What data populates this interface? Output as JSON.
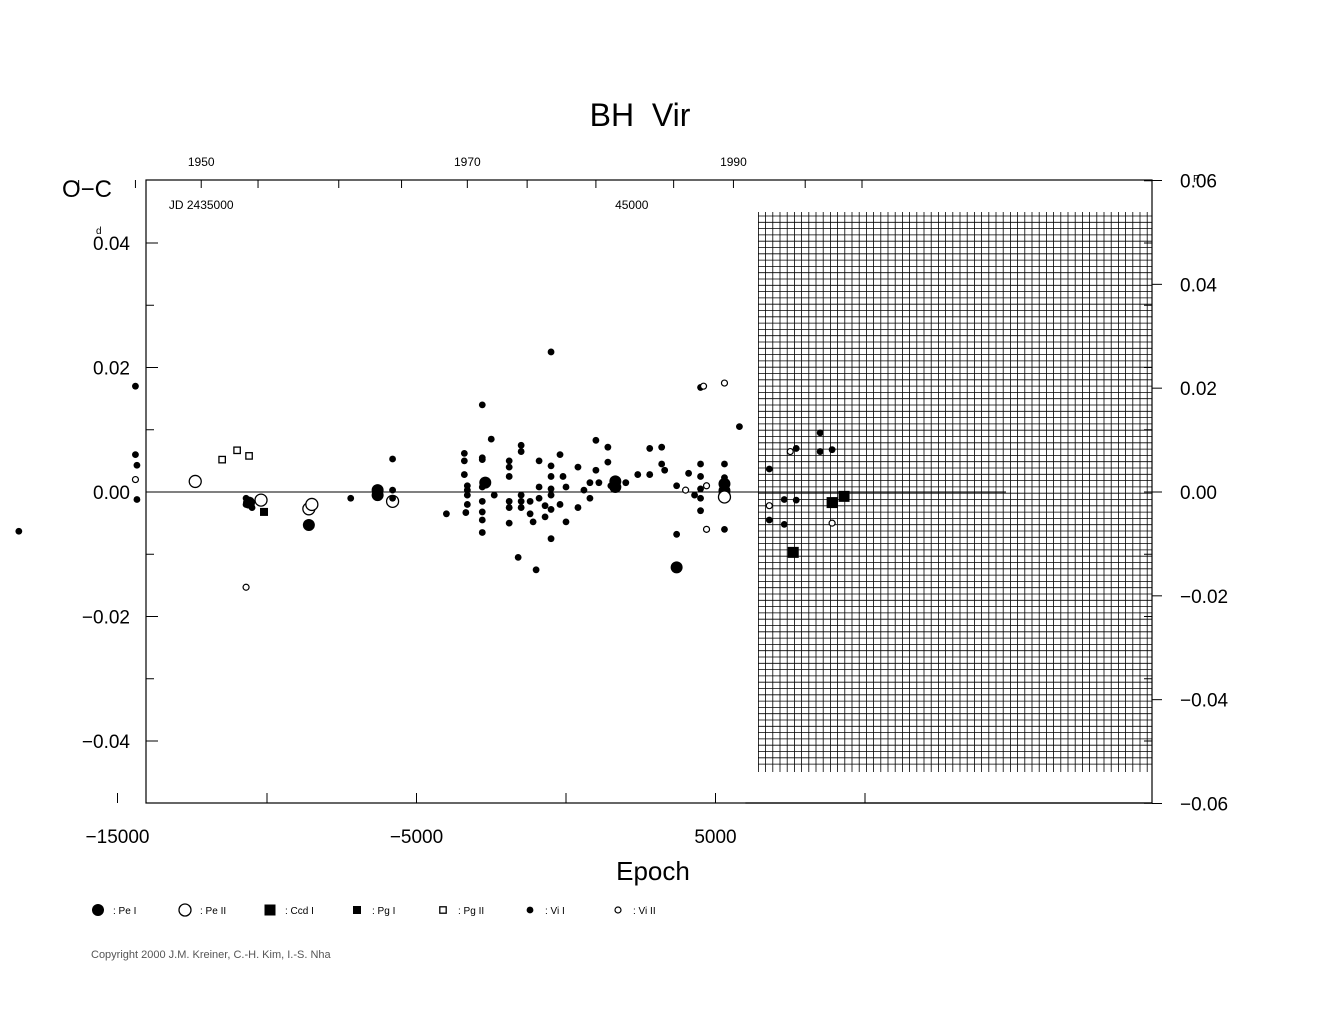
{
  "chart_data": {
    "type": "scatter",
    "title": "BH  Vir",
    "xlabel": "Epoch",
    "ylabel_left": "O−C",
    "ylabel_left_unit": "d",
    "ylabel_right_unit": "P",
    "xlim": [
      -19000,
      10650
    ],
    "ylim": [
      -0.05,
      0.05
    ],
    "ylim_right": [
      -0.06,
      0.06
    ],
    "x_ticks": [
      -15000,
      -5000,
      5000
    ],
    "x_tick_labels": [
      "−15000",
      "−5000",
      "5000"
    ],
    "y_ticks": [
      0.04,
      0.02,
      0.0,
      -0.02,
      -0.04
    ],
    "y_tick_labels": [
      "0.04",
      "0.02",
      "0.00",
      "−0.02",
      "−0.04"
    ],
    "y_right_ticks": [
      0.06,
      0.04,
      0.02,
      0.0,
      -0.02,
      -0.04,
      -0.06
    ],
    "y_right_tick_labels": [
      "0.06",
      "0.04",
      "0.02",
      "0.00",
      "−0.02",
      "−0.04",
      "−0.06"
    ],
    "top_year_labels": [
      {
        "year": "1950",
        "epoch": -12200
      },
      {
        "year": "1970",
        "epoch": -3300
      },
      {
        "year": "1990",
        "epoch": 5600
      }
    ],
    "jd_labels": [
      {
        "text": "JD  2435000",
        "epoch": -12200
      },
      {
        "text": "45000",
        "epoch": 2200
      }
    ],
    "hatched_region_start": 6000,
    "legend": [
      {
        "marker": "big-filled-circle",
        "label": ": Pe I"
      },
      {
        "marker": "big-open-circle",
        "label": ": Pe II"
      },
      {
        "marker": "big-filled-square",
        "label": ": Ccd I"
      },
      {
        "marker": "small-filled-square",
        "label": ": Pg I"
      },
      {
        "marker": "small-open-square",
        "label": ": Pg II"
      },
      {
        "marker": "small-filled-circle",
        "label": ": Vi I"
      },
      {
        "marker": "small-open-circle",
        "label": ": Vi II"
      }
    ],
    "series": [
      {
        "name": ": Pe I",
        "marker": "big-filled-circle",
        "points": [
          [
            -10600,
            -0.0017
          ],
          [
            -8600,
            -0.0053
          ],
          [
            -6300,
            0.0003
          ],
          [
            -6300,
            -0.0005
          ],
          [
            -2700,
            0.0015
          ],
          [
            1650,
            0.0017
          ],
          [
            1650,
            0.0008
          ],
          [
            3700,
            -0.0121
          ],
          [
            5300,
            0.0013
          ],
          [
            5300,
            0.0002
          ],
          [
            5300,
            -0.0005
          ]
        ]
      },
      {
        "name": ": Pe II",
        "marker": "big-open-circle",
        "points": [
          [
            -12400,
            0.0017
          ],
          [
            -10200,
            -0.0013
          ],
          [
            -8600,
            -0.0027
          ],
          [
            -8500,
            -0.002
          ],
          [
            -5800,
            -0.0015
          ],
          [
            5300,
            -0.0008
          ]
        ]
      },
      {
        "name": ": Ccd I",
        "marker": "big-filled-square",
        "points": [
          [
            7600,
            -0.0097
          ],
          [
            8900,
            -0.0017
          ],
          [
            9300,
            -0.0007
          ]
        ]
      },
      {
        "name": ": Pg I",
        "marker": "small-filled-square",
        "points": [
          [
            -10100,
            -0.0032
          ]
        ]
      },
      {
        "name": ": Pg II",
        "marker": "small-open-square",
        "points": [
          [
            -11500,
            0.0052
          ],
          [
            -11000,
            0.0067
          ],
          [
            -10600,
            0.0058
          ]
        ]
      },
      {
        "name": ": Vi I",
        "marker": "small-filled-circle",
        "points": [
          [
            -18300,
            -0.0063
          ],
          [
            -14400,
            0.017
          ],
          [
            -14400,
            0.006
          ],
          [
            -14350,
            0.0043
          ],
          [
            -14350,
            -0.0012
          ],
          [
            -10700,
            -0.001
          ],
          [
            -10700,
            -0.002
          ],
          [
            -10500,
            -0.0025
          ],
          [
            -7200,
            -0.001
          ],
          [
            -5800,
            0.0053
          ],
          [
            -5800,
            0.0003
          ],
          [
            -5800,
            -0.001
          ],
          [
            -4000,
            -0.0035
          ],
          [
            -3400,
            0.0062
          ],
          [
            -3400,
            0.005
          ],
          [
            -3400,
            0.0028
          ],
          [
            -3300,
            0.001
          ],
          [
            -3300,
            0.0003
          ],
          [
            -3300,
            -0.0005
          ],
          [
            -3300,
            -0.002
          ],
          [
            -3350,
            -0.0033
          ],
          [
            -2800,
            0.014
          ],
          [
            -2800,
            0.0055
          ],
          [
            -2800,
            0.0052
          ],
          [
            -2800,
            0.0008
          ],
          [
            -2800,
            -0.0015
          ],
          [
            -2800,
            -0.0032
          ],
          [
            -2800,
            -0.0045
          ],
          [
            -2800,
            -0.0065
          ],
          [
            -2500,
            0.0085
          ],
          [
            -2400,
            -0.0005
          ],
          [
            -1900,
            0.005
          ],
          [
            -1900,
            0.004
          ],
          [
            -1900,
            0.0025
          ],
          [
            -1900,
            -0.0015
          ],
          [
            -1900,
            -0.0025
          ],
          [
            -1900,
            -0.005
          ],
          [
            -1600,
            -0.0105
          ],
          [
            -1500,
            0.0075
          ],
          [
            -1500,
            0.0065
          ],
          [
            -1500,
            -0.0005
          ],
          [
            -1500,
            -0.0015
          ],
          [
            -1500,
            -0.0025
          ],
          [
            -1200,
            -0.0015
          ],
          [
            -1200,
            -0.0035
          ],
          [
            -1100,
            -0.0048
          ],
          [
            -1000,
            -0.0125
          ],
          [
            -900,
            0.005
          ],
          [
            -900,
            0.0008
          ],
          [
            -900,
            -0.001
          ],
          [
            -700,
            -0.0022
          ],
          [
            -700,
            -0.004
          ],
          [
            -500,
            0.0225
          ],
          [
            -500,
            0.0042
          ],
          [
            -500,
            0.0025
          ],
          [
            -500,
            0.0005
          ],
          [
            -500,
            -0.0005
          ],
          [
            -500,
            -0.0028
          ],
          [
            -500,
            -0.0075
          ],
          [
            -200,
            0.006
          ],
          [
            -200,
            -0.002
          ],
          [
            -100,
            0.0025
          ],
          [
            0,
            0.0008
          ],
          [
            0,
            -0.0048
          ],
          [
            400,
            0.004
          ],
          [
            400,
            -0.0025
          ],
          [
            600,
            0.0003
          ],
          [
            800,
            0.0015
          ],
          [
            800,
            -0.001
          ],
          [
            1000,
            0.0083
          ],
          [
            1000,
            0.0035
          ],
          [
            1100,
            0.0015
          ],
          [
            1400,
            0.0072
          ],
          [
            1400,
            0.0048
          ],
          [
            1500,
            0.001
          ],
          [
            2000,
            0.0015
          ],
          [
            2400,
            0.0028
          ],
          [
            2800,
            0.0028
          ],
          [
            2800,
            0.007
          ],
          [
            3200,
            0.0072
          ],
          [
            3200,
            0.0045
          ],
          [
            3300,
            0.0035
          ],
          [
            3700,
            0.001
          ],
          [
            3700,
            -0.0068
          ],
          [
            4100,
            0.003
          ],
          [
            4300,
            -0.0005
          ],
          [
            4500,
            0.0168
          ],
          [
            4500,
            0.0045
          ],
          [
            4500,
            0.0025
          ],
          [
            4500,
            0.0005
          ],
          [
            4500,
            -0.001
          ],
          [
            4500,
            -0.003
          ],
          [
            5300,
            0.0045
          ],
          [
            5300,
            -0.006
          ],
          [
            5800,
            0.0105
          ],
          [
            6800,
            0.0037
          ],
          [
            6800,
            -0.0045
          ],
          [
            7300,
            -0.0012
          ],
          [
            7300,
            -0.0052
          ],
          [
            7700,
            0.007
          ],
          [
            7700,
            -0.0013
          ],
          [
            8500,
            0.0095
          ],
          [
            8500,
            0.0065
          ],
          [
            8900,
            0.0068
          ],
          [
            5300,
            0.0023
          ]
        ]
      },
      {
        "name": ": Vi II",
        "marker": "small-open-circle",
        "points": [
          [
            -14400,
            0.002
          ],
          [
            -10700,
            -0.0153
          ],
          [
            4600,
            0.017
          ],
          [
            4700,
            0.001
          ],
          [
            4700,
            -0.006
          ],
          [
            4000,
            0.0003
          ],
          [
            5300,
            0.0175
          ],
          [
            6800,
            -0.0022
          ],
          [
            7500,
            0.0065
          ],
          [
            8900,
            -0.005
          ]
        ]
      }
    ]
  },
  "footer": {
    "copyright": "Copyright 2000 J.M. Kreiner, C.-H. Kim, I.-S. Nha"
  }
}
